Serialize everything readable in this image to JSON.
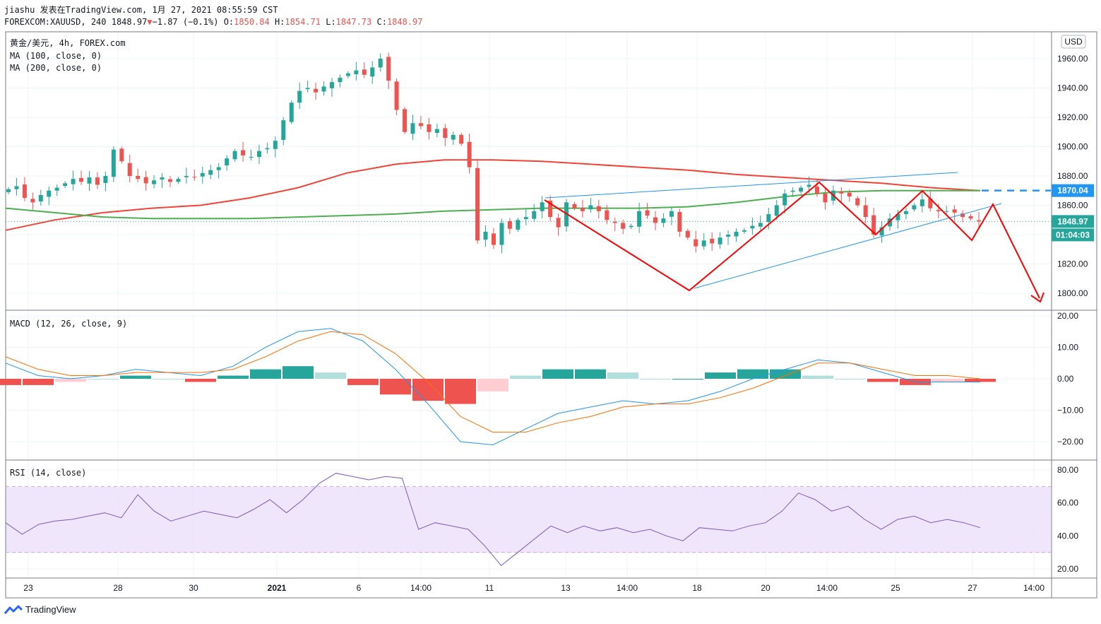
{
  "header": {
    "line1": "jiashu 发表在TradingView.com, 1月 27, 2021 08:55:59 CST",
    "symbol_prefix": "FOREXCOM:XAUUSD, 240 1848.97",
    "change": "−1.87 (−0.1%)",
    "o_label": "O:",
    "o_value": "1850.84",
    "h_label": "H:",
    "h_value": "1854.71",
    "l_label": "L:",
    "l_value": "1847.73",
    "c_label": "C:",
    "c_value": "1848.97"
  },
  "legend": {
    "title": "黄金/美元, 4h, FOREX.com",
    "ma100": "MA (100, close, 0)",
    "ma200": "MA (200, close, 0)"
  },
  "macd_label": "MACD (12, 26, close, 9)",
  "rsi_label": "RSI (14, close)",
  "currency": "USD",
  "price_tags": {
    "level": "1870.04",
    "last": "1848.97",
    "countdown": "01:04:03"
  },
  "x_ticks": [
    "23",
    "28",
    "30",
    "2021",
    "6",
    "14:00",
    "11",
    "13",
    "14:00",
    "18",
    "20",
    "14:00",
    "25",
    "27",
    "14:00"
  ],
  "price_ticks": [
    "1960.00",
    "1940.00",
    "1920.00",
    "1900.00",
    "1880.00",
    "1860.00",
    "1840.00",
    "1820.00",
    "1800.00"
  ],
  "macd_ticks": [
    "20.00",
    "10.00",
    "0.00",
    "−10.00",
    "−20.00"
  ],
  "rsi_ticks": [
    "80.00",
    "60.00",
    "40.00",
    "20.00"
  ],
  "brand": "TradingView",
  "colors": {
    "up": "#26a69a",
    "down": "#ef5350",
    "ma100": "#4caf50",
    "ma200": "#f44336",
    "annotation": "#ff0000",
    "channel": "#2196f3",
    "rsi_band": "#e9d8fb",
    "macd_line": "#2196f3",
    "signal_line": "#ff6d00"
  },
  "chart_data": [
    {
      "type": "candlestick",
      "title": "黄金/美元, 4h, FOREX.com",
      "ylabel": "USD",
      "ylim": [
        1788,
        1968
      ],
      "x_labels": [
        "23",
        "28",
        "30",
        "2021",
        "6",
        "14:00",
        "11",
        "13",
        "14:00",
        "18",
        "20",
        "14:00",
        "25",
        "27",
        "14:00"
      ],
      "last_close": 1848.97,
      "level_line": 1870.04,
      "close_path": [
        1871,
        1873,
        1865,
        1862,
        1867,
        1870,
        1872,
        1875,
        1878,
        1876,
        1879,
        1874,
        1880,
        1898,
        1890,
        1880,
        1878,
        1875,
        1877,
        1879,
        1876,
        1878,
        1880,
        1879,
        1882,
        1884,
        1886,
        1892,
        1897,
        1894,
        1893,
        1897,
        1899,
        1904,
        1918,
        1930,
        1938,
        1940,
        1937,
        1941,
        1944,
        1947,
        1950,
        1952,
        1949,
        1954,
        1960,
        1945,
        1925,
        1910,
        1916,
        1914,
        1910,
        1912,
        1906,
        1908,
        1902,
        1886,
        1836,
        1842,
        1833,
        1848,
        1844,
        1850,
        1852,
        1856,
        1862,
        1852,
        1845,
        1862,
        1858,
        1856,
        1860,
        1856,
        1850,
        1848,
        1844,
        1846,
        1856,
        1853,
        1848,
        1851,
        1856,
        1842,
        1838,
        1832,
        1836,
        1834,
        1838,
        1840,
        1842,
        1843,
        1846,
        1848,
        1854,
        1860,
        1868,
        1870,
        1872,
        1874,
        1868,
        1862,
        1870,
        1868,
        1866,
        1860,
        1852,
        1840,
        1845,
        1851,
        1854,
        1856,
        1860,
        1864,
        1858,
        1856,
        1856,
        1855,
        1852,
        1851,
        1849
      ],
      "ma100": [
        1858,
        1855,
        1852,
        1851,
        1851,
        1851,
        1852,
        1853,
        1854,
        1856,
        1857,
        1858,
        1858,
        1858,
        1859,
        1862,
        1866,
        1869,
        1870,
        1870,
        1870
      ],
      "ma200": [
        1843,
        1850,
        1855,
        1858,
        1860,
        1865,
        1872,
        1882,
        1888,
        1891,
        1891,
        1890,
        1888,
        1886,
        1884,
        1881,
        1879,
        1877,
        1875,
        1872,
        1870
      ]
    },
    {
      "type": "line",
      "title": "MACD (12, 26, close, 9)",
      "ylim": [
        -25,
        22
      ],
      "series": [
        {
          "name": "MACD",
          "values": [
            5,
            1,
            0,
            1,
            3,
            2,
            1,
            4,
            10,
            15,
            16,
            12,
            3,
            -8,
            -20,
            -21,
            -16,
            -11,
            -9,
            -7,
            -8,
            -7,
            -4,
            0,
            3,
            6,
            5,
            2,
            -1,
            -1,
            -1
          ]
        },
        {
          "name": "Signal",
          "values": [
            7,
            3,
            1,
            1,
            2,
            2,
            2,
            3,
            7,
            12,
            15,
            14,
            8,
            -1,
            -12,
            -17,
            -17,
            -14,
            -12,
            -9,
            -8,
            -8,
            -6,
            -3,
            1,
            5,
            5,
            3,
            1,
            1,
            0
          ]
        }
      ],
      "histogram": [
        -2,
        -2,
        -1,
        0,
        1,
        0,
        -1,
        1,
        3,
        4,
        2,
        -2,
        -5,
        -7,
        -8,
        -4,
        1,
        3,
        3,
        2,
        0,
        0,
        2,
        3,
        3,
        1,
        0,
        -1,
        -2,
        -1,
        -1
      ]
    },
    {
      "type": "line",
      "title": "RSI (14, close)",
      "ylim": [
        15,
        85
      ],
      "bands": [
        30,
        70
      ],
      "values": [
        48,
        41,
        47,
        49,
        50,
        52,
        54,
        51,
        65,
        55,
        49,
        52,
        55,
        53,
        51,
        56,
        62,
        54,
        62,
        72,
        78,
        76,
        74,
        76,
        75,
        44,
        48,
        46,
        44,
        34,
        22,
        30,
        38,
        46,
        42,
        46,
        43,
        45,
        42,
        44,
        40,
        37,
        45,
        44,
        43,
        46,
        48,
        55,
        66,
        62,
        55,
        58,
        50,
        44,
        50,
        52,
        48,
        50,
        48,
        45
      ]
    }
  ]
}
